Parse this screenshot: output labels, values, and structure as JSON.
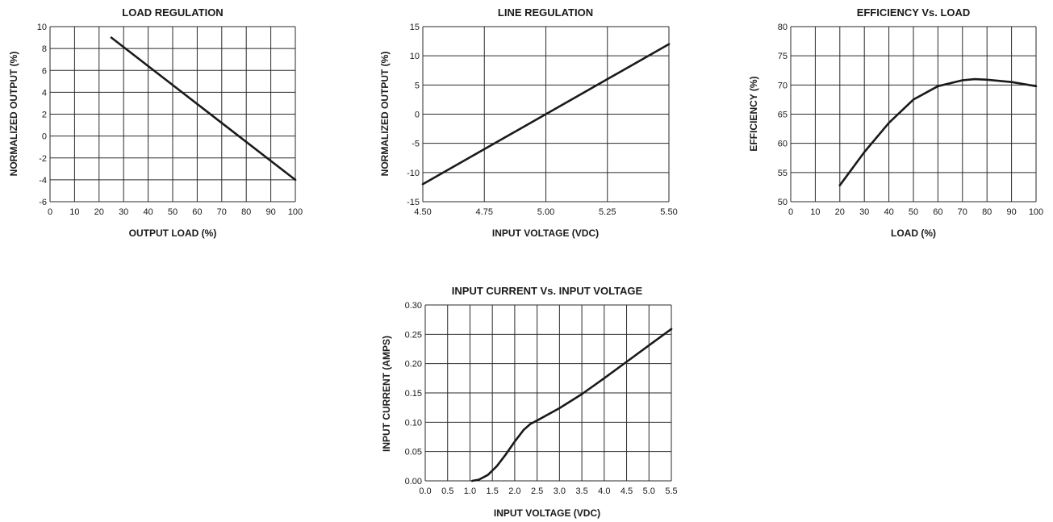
{
  "chart_data": [
    {
      "type": "line",
      "title": "LOAD REGULATION",
      "xlabel": "OUTPUT LOAD (%)",
      "ylabel": "NORMALIZED OUTPUT (%)",
      "xlim": [
        0,
        100
      ],
      "ylim": [
        -6,
        10
      ],
      "xticks": [
        "0",
        "10",
        "20",
        "30",
        "40",
        "50",
        "60",
        "70",
        "80",
        "90",
        "100"
      ],
      "yticks": [
        "-6",
        "-4",
        "-2",
        "0",
        "2",
        "4",
        "6",
        "8",
        "10"
      ],
      "grid": true,
      "series": [
        {
          "x": [
            25,
            100
          ],
          "y": [
            9,
            -4
          ]
        }
      ]
    },
    {
      "type": "line",
      "title": "LINE REGULATION",
      "xlabel": "INPUT VOLTAGE (VDC)",
      "ylabel": "NORMALIZED OUTPUT (%)",
      "xlim": [
        4.5,
        5.5
      ],
      "ylim": [
        -15,
        15
      ],
      "xticks": [
        "4.50",
        "4.75",
        "5.00",
        "5.25",
        "5.50"
      ],
      "yticks": [
        "-15",
        "-10",
        "-5",
        "0",
        "5",
        "10",
        "15"
      ],
      "grid": true,
      "series": [
        {
          "x": [
            4.5,
            5.0,
            5.5
          ],
          "y": [
            -12,
            0,
            12
          ]
        }
      ]
    },
    {
      "type": "line",
      "title": "EFFICIENCY Vs. LOAD",
      "xlabel": "LOAD (%)",
      "ylabel": "EFFICIENCY (%)",
      "xlim": [
        0,
        100
      ],
      "ylim": [
        50,
        80
      ],
      "xticks": [
        "0",
        "10",
        "20",
        "30",
        "40",
        "50",
        "60",
        "70",
        "80",
        "90",
        "100"
      ],
      "yticks": [
        "50",
        "55",
        "60",
        "65",
        "70",
        "75",
        "80"
      ],
      "grid": true,
      "series": [
        {
          "x": [
            20,
            30,
            40,
            50,
            60,
            70,
            75,
            80,
            90,
            100
          ],
          "y": [
            52.8,
            58.5,
            63.5,
            67.5,
            69.8,
            70.8,
            71,
            70.9,
            70.5,
            69.8
          ]
        }
      ]
    },
    {
      "type": "line",
      "title": "INPUT CURRENT Vs. INPUT VOLTAGE",
      "xlabel": "INPUT VOLTAGE (VDC)",
      "ylabel": "INPUT CURRENT (AMPS)",
      "xlim": [
        0,
        5.5
      ],
      "ylim": [
        0,
        0.3
      ],
      "xticks": [
        "0.0",
        "0.5",
        "1.0",
        "1.5",
        "2.0",
        "2.5",
        "3.0",
        "3.5",
        "4.0",
        "4.5",
        "5.0",
        "5.5"
      ],
      "yticks": [
        "0.00",
        "0.05",
        "0.10",
        "0.15",
        "0.20",
        "0.25",
        "0.30"
      ],
      "grid": true,
      "series": [
        {
          "x": [
            1.05,
            1.2,
            1.4,
            1.6,
            1.8,
            2.0,
            2.2,
            2.35,
            2.5,
            3.0,
            3.5,
            4.0,
            4.5,
            5.0,
            5.5
          ],
          "y": [
            0.0,
            0.002,
            0.01,
            0.025,
            0.045,
            0.067,
            0.087,
            0.097,
            0.103,
            0.124,
            0.148,
            0.175,
            0.203,
            0.231,
            0.259
          ]
        }
      ]
    }
  ]
}
